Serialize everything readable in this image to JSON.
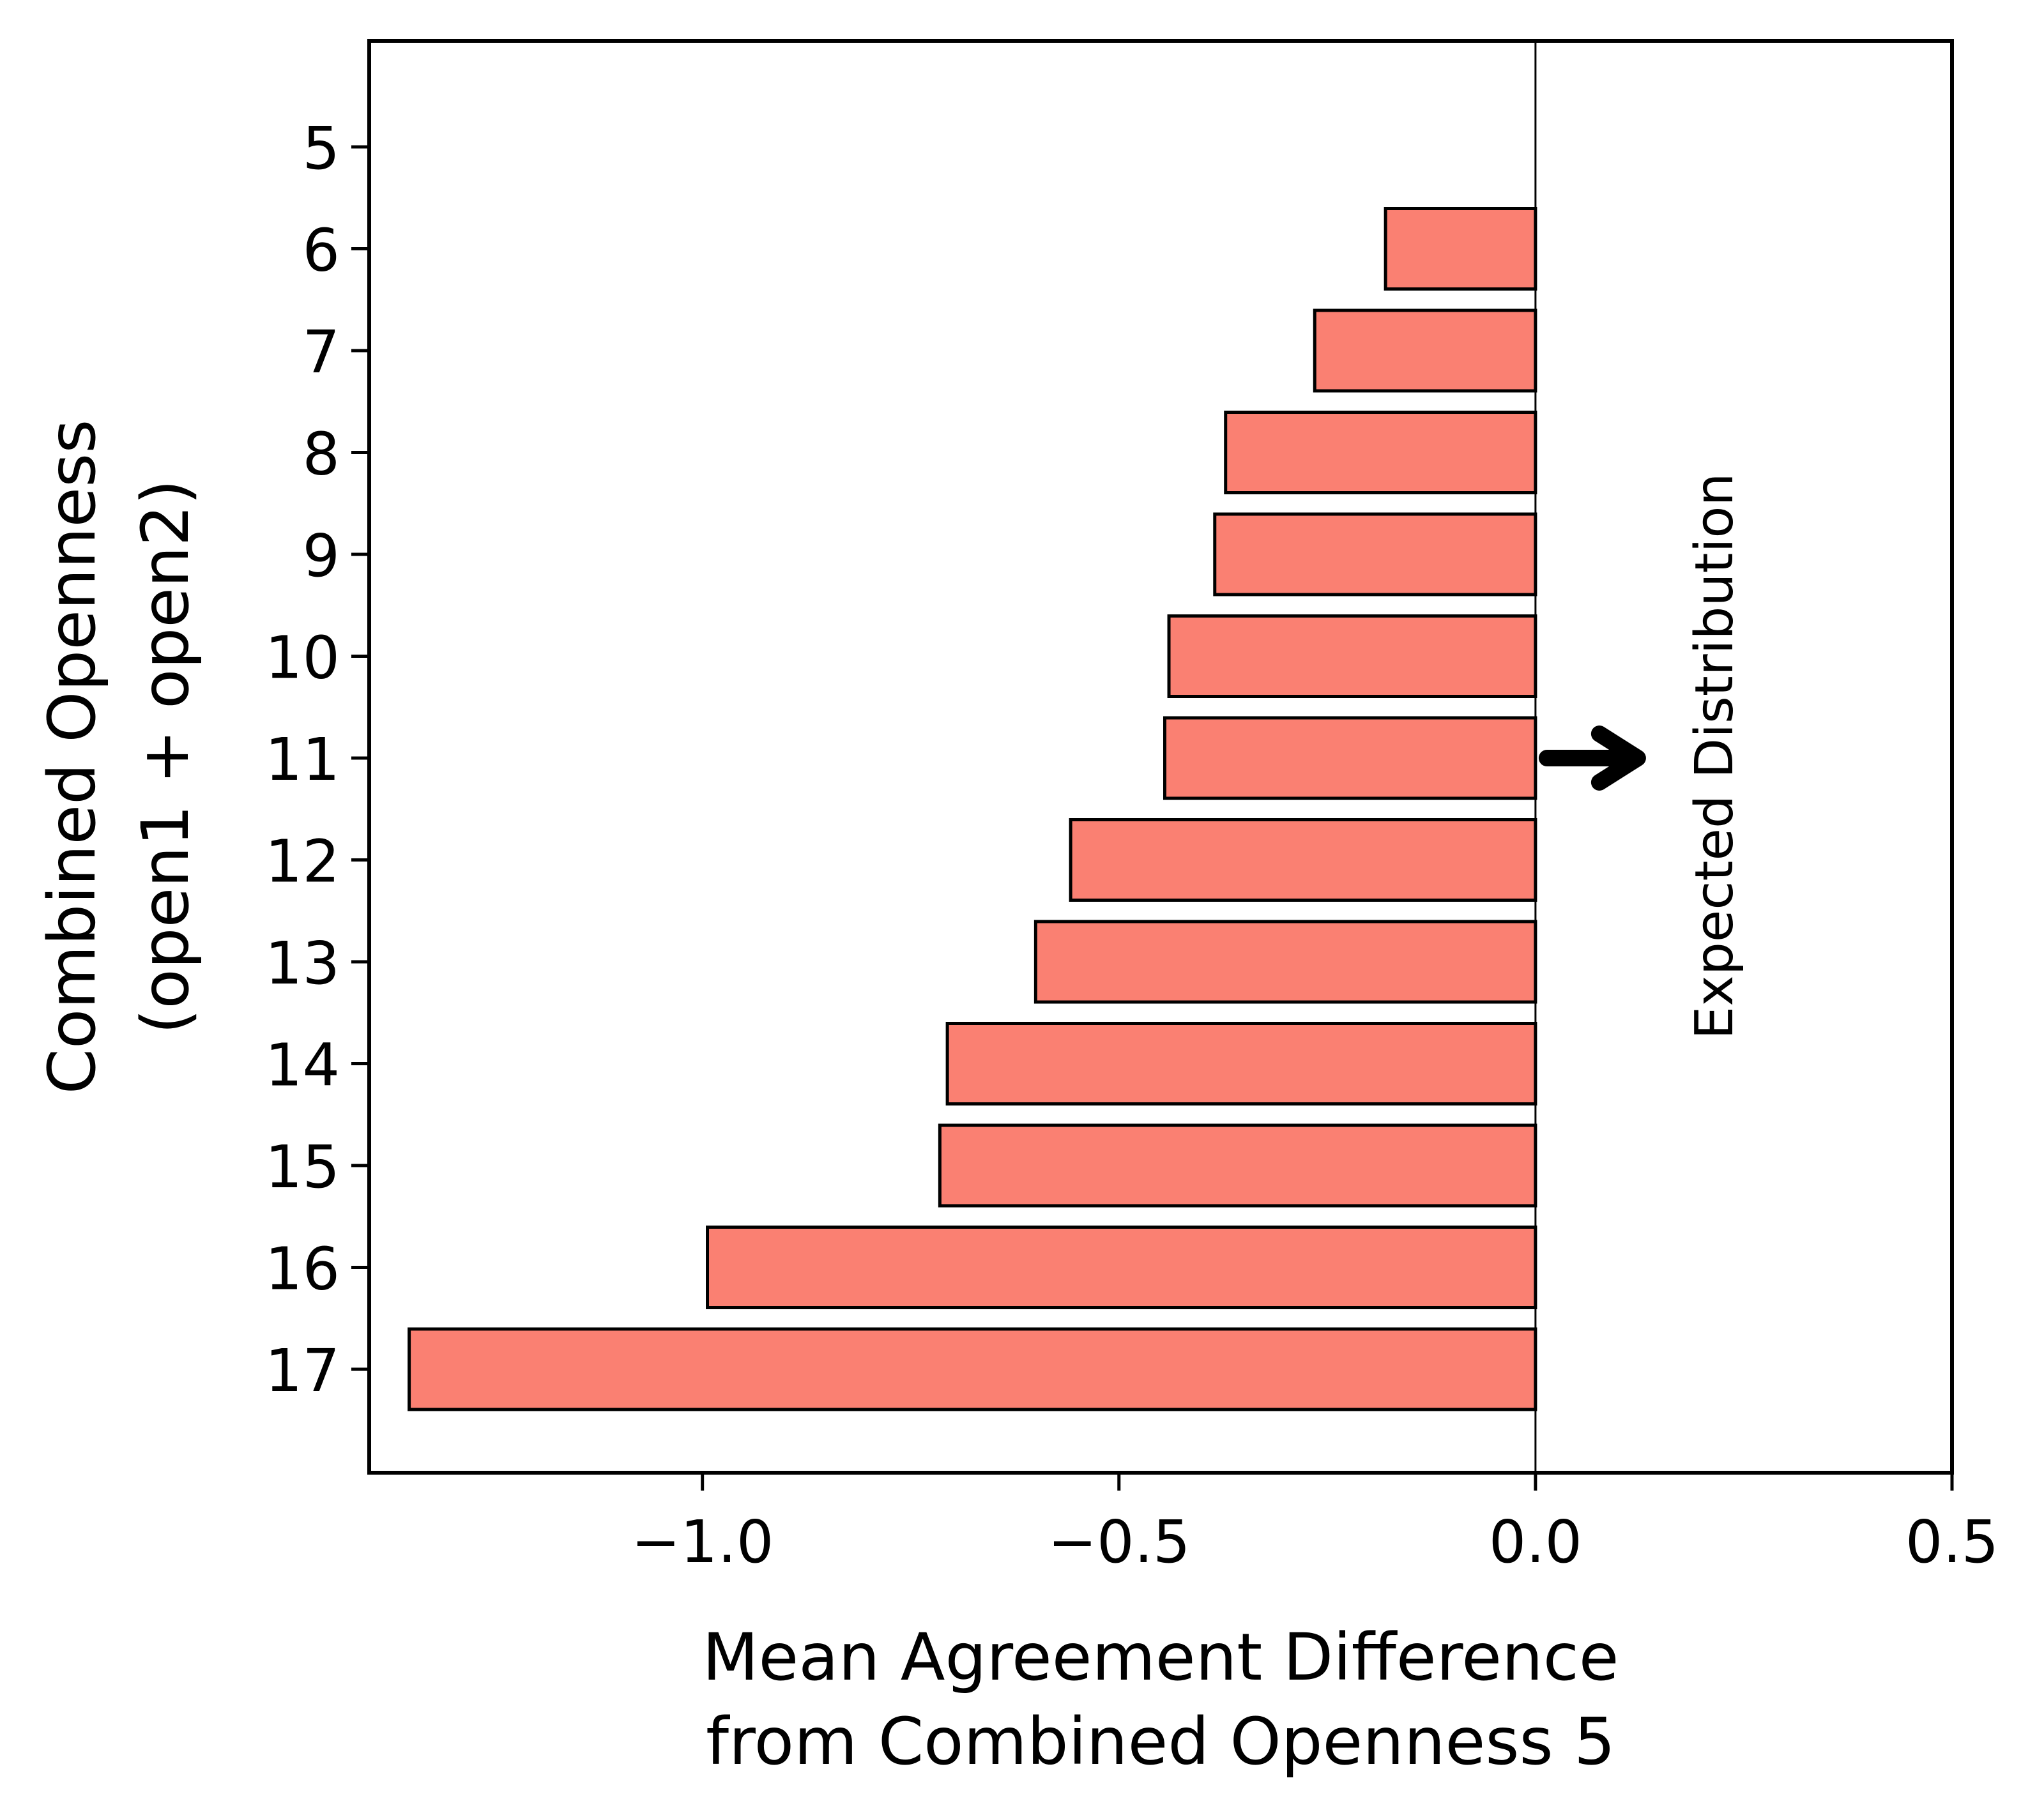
{
  "chart_data": {
    "type": "bar",
    "orientation": "horizontal",
    "categories": [
      "5",
      "6",
      "7",
      "8",
      "9",
      "10",
      "11",
      "12",
      "13",
      "14",
      "15",
      "16",
      "17"
    ],
    "values": [
      0.0,
      -0.18,
      -0.265,
      -0.372,
      -0.385,
      -0.44,
      -0.445,
      -0.558,
      -0.6,
      -0.706,
      -0.715,
      -0.994,
      -1.352
    ],
    "xlabel_lines": [
      "Mean Agreement Difference",
      "from Combined Openness 5"
    ],
    "ylabel_lines": [
      "Combined Openness",
      "(open1 + open2)"
    ],
    "xlim": [
      -1.4,
      0.5
    ],
    "xticks": [
      -1.0,
      -0.5,
      0.0,
      0.5
    ],
    "xtick_labels": [
      "−1.0",
      "−0.5",
      "0.0",
      "0.5"
    ],
    "bar_color": "#fa8072",
    "edge_color": "#000000",
    "grid": false,
    "reference_line": {
      "x": 0.0
    },
    "annotation": {
      "text": "Expected Distribution",
      "arrow_direction": "right",
      "at_category": "11"
    }
  }
}
